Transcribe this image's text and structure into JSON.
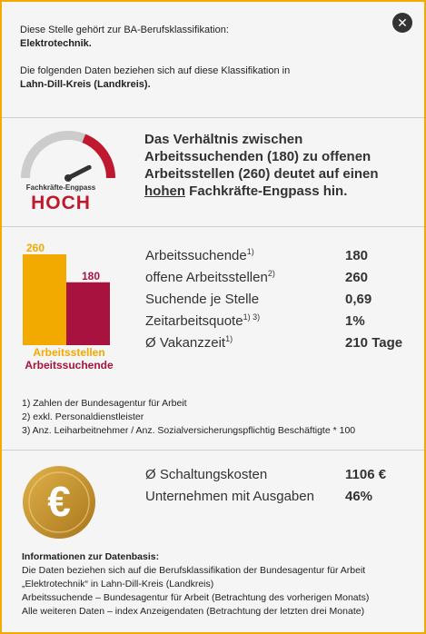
{
  "intro": {
    "line1": "Diese Stelle gehört zur BA-Berufsklassifikation:",
    "classification": "Elektrotechnik.",
    "line2": "Die folgenden Daten beziehen sich auf diese Klassifikation in",
    "region": "Lahn-Dill-Kreis (Landkreis)."
  },
  "close": {
    "icon": "close-icon",
    "label": "✕"
  },
  "gauge": {
    "label": "Fachkräfte-Engpass",
    "value": "HOCH",
    "level_fraction": 0.85,
    "colors": {
      "track": "#cccccc",
      "high": "#c0182e",
      "needle": "#333333"
    }
  },
  "headline": {
    "part1": "Das Verhältnis zwischen Arbeitssuchenden (180) zu offenen Arbeitsstellen (260) deutet auf einen",
    "emph": "hohen",
    "part2": "Fachkräfte-Engpass hin."
  },
  "chart_data": {
    "type": "bar",
    "categories": [
      "Arbeitsstellen",
      "Arbeitssuchende"
    ],
    "values": [
      260,
      180
    ],
    "colors": [
      "#f2a900",
      "#a8123e"
    ],
    "ylim": [
      0,
      260
    ]
  },
  "stats": [
    {
      "label": "Arbeitssuchende",
      "sup": "1)",
      "value": "180"
    },
    {
      "label": "offene Arbeitsstellen",
      "sup": "2)",
      "value": "260"
    },
    {
      "label": "Suchende je Stelle",
      "sup": "",
      "value": "0,69"
    },
    {
      "label": "Zeitarbeitsquote",
      "sup": "1) 3)",
      "value": "1%"
    },
    {
      "label": "Ø Vakanzzeit",
      "sup": "1)",
      "value": "210 Tage"
    }
  ],
  "footnotes": [
    "1) Zahlen der Bundesagentur für Arbeit",
    "2) exkl. Personaldienstleister",
    "3) Anz. Leiharbeitnehmer / Anz. Sozialversicherungspflichtig Beschäftigte * 100"
  ],
  "costs": [
    {
      "label": "Ø Schaltungskosten",
      "value": "1106 €"
    },
    {
      "label": "Unternehmen mit Ausgaben",
      "value": "46%"
    }
  ],
  "coin": {
    "icon": "euro-coin-icon",
    "symbol": "€"
  },
  "info": {
    "title": "Informationen zur Datenbasis:",
    "lines": [
      "Die Daten beziehen sich auf die Berufsklassifikation der Bundesagentur für Arbeit",
      "„Elektrotechnik“ in Lahn-Dill-Kreis (Landkreis)",
      "Arbeitssuchende – Bundesagentur für Arbeit (Betrachtung des vorherigen Monats)",
      "Alle weiteren Daten – index Anzeigendaten (Betrachtung der letzten drei Monate)"
    ]
  }
}
